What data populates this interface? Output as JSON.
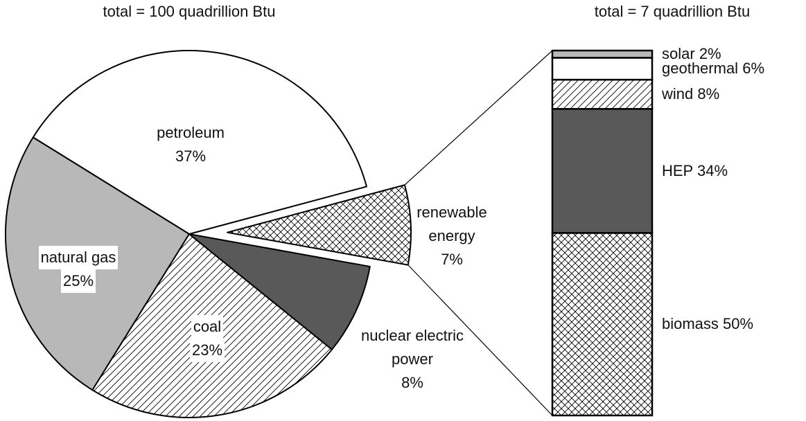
{
  "chart_data": [
    {
      "type": "pie",
      "title": "total = 100 quadrillion Btu",
      "categories": [
        "petroleum",
        "natural gas",
        "coal",
        "nuclear electric power",
        "renewable energy"
      ],
      "values": [
        37,
        25,
        23,
        8,
        7
      ],
      "value_labels": [
        "37%",
        "25%",
        "23%",
        "8%",
        "7%"
      ],
      "colors": [
        "#ffffff",
        "#b8b8b8",
        "#ffffff",
        "#595959",
        "#ffffff"
      ],
      "hatch": [
        null,
        null,
        "/",
        null,
        "x"
      ]
    },
    {
      "type": "stacked_bar",
      "title": "total = 7 quadrillion Btu",
      "categories": [
        "solar",
        "geothermal",
        "wind",
        "HEP",
        "biomass"
      ],
      "values": [
        2,
        6,
        8,
        34,
        50
      ],
      "value_labels": [
        "2%",
        "6%",
        "8%",
        "34%",
        "50%"
      ],
      "colors": [
        "#b8b8b8",
        "#ffffff",
        "#ffffff",
        "#595959",
        "#ffffff"
      ],
      "hatch": [
        null,
        null,
        "/",
        null,
        "x"
      ]
    }
  ]
}
